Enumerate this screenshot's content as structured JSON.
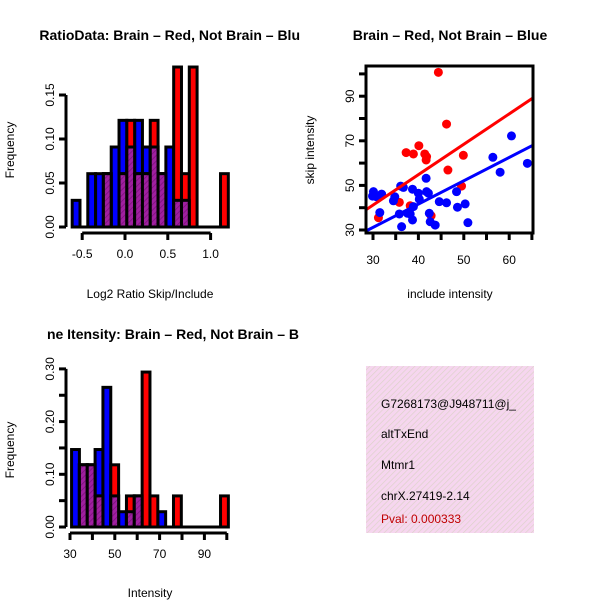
{
  "colors": {
    "brain": "#ff0000",
    "not_brain": "#0000ff",
    "overlap": "#a020a0",
    "pval": "#c00000",
    "info_bg": "#f6d6ef"
  },
  "chart_data": [
    {
      "type": "bar",
      "title": "RatioData: Brain – Red, Not Brain – Blu",
      "xlabel": "Log2 Ratio Skip/Include",
      "ylabel": "Frequency",
      "xlim": [
        -0.617,
        1.207
      ],
      "ylim": [
        0,
        0.18
      ],
      "bin_start": -0.617,
      "bin_width": 0.0912,
      "xticks": [
        -0.5,
        0.0,
        0.5,
        1.0
      ],
      "xtick_labels": [
        "-0.5",
        "0.0",
        "0.5",
        "1.0"
      ],
      "yticks": [
        0,
        0.05,
        0.1,
        0.15
      ],
      "ytick_labels": [
        "0.00",
        "0.05",
        "0.10",
        "0.15"
      ],
      "series": [
        {
          "name": "Not Brain",
          "color": "blue",
          "values": [
            0.0303,
            0,
            0.0606,
            0.0606,
            0.0606,
            0.0909,
            0.1212,
            0.0909,
            0.1212,
            0.0909,
            0.0909,
            0.0606,
            0.0909,
            0.0303,
            0.0303,
            0,
            0,
            0,
            0,
            0
          ]
        },
        {
          "name": "Brain",
          "color": "red",
          "values": [
            0,
            0,
            0,
            0,
            0.0606,
            0,
            0.0606,
            0.1212,
            0.0606,
            0.0606,
            0.1212,
            0.0606,
            0,
            0.1818,
            0.0606,
            0.1818,
            0,
            0,
            0,
            0.0606
          ]
        }
      ]
    },
    {
      "type": "scatter",
      "title": "Brain – Red, Not Brain – Blue",
      "xlabel": "include intensity",
      "ylabel": "skip intensity",
      "xlim": [
        28.5,
        65.3
      ],
      "ylim": [
        28.6,
        103.5
      ],
      "xticks": [
        30,
        35,
        40,
        45,
        50,
        55,
        60,
        65
      ],
      "xtick_labels": [
        "30",
        "40",
        "50",
        "60"
      ],
      "xtick_label_values": [
        30,
        40,
        50,
        60
      ],
      "yticks": [
        30,
        40,
        50,
        60,
        70,
        80,
        90,
        100
      ],
      "ytick_labels": [
        "30",
        "50",
        "70",
        "90"
      ],
      "ytick_label_values": [
        30,
        50,
        70,
        90
      ],
      "series": [
        {
          "name": "Brain",
          "color": "red",
          "points": [
            [
              44.4,
              100.7
            ],
            [
              46.2,
              77.5
            ],
            [
              40.1,
              67.8
            ],
            [
              37.3,
              64.7
            ],
            [
              38.9,
              64.1
            ],
            [
              41.4,
              64.1
            ],
            [
              41.8,
              62.9
            ],
            [
              41.7,
              61.4
            ],
            [
              46.5,
              56.9
            ],
            [
              49.9,
              63.5
            ],
            [
              49.5,
              49.7
            ],
            [
              35.8,
              42.4
            ],
            [
              38.2,
              40.9
            ],
            [
              31.2,
              35.5
            ],
            [
              42.8,
              36.4
            ]
          ],
          "fit": [
            [
              28.4,
              39.0
            ],
            [
              65.3,
              89.3
            ]
          ]
        },
        {
          "name": "Not Brain",
          "color": "blue",
          "points": [
            [
              30.1,
              47.2
            ],
            [
              29.9,
              45.2
            ],
            [
              30.8,
              44.9
            ],
            [
              31.9,
              46.1
            ],
            [
              31.5,
              37.8
            ],
            [
              34.5,
              43.1
            ],
            [
              34.8,
              44.9
            ],
            [
              35.8,
              37.2
            ],
            [
              36.1,
              49.7
            ],
            [
              36.7,
              49.1
            ],
            [
              36.3,
              31.5
            ],
            [
              37.6,
              37.5
            ],
            [
              38.2,
              37.2
            ],
            [
              38.7,
              34.5
            ],
            [
              38.7,
              48.3
            ],
            [
              38.9,
              40.5
            ],
            [
              40.0,
              46.5
            ],
            [
              40.2,
              43.8
            ],
            [
              41.7,
              53.2
            ],
            [
              41.8,
              47.2
            ],
            [
              42.2,
              46.5
            ],
            [
              42.4,
              37.5
            ],
            [
              42.6,
              33.7
            ],
            [
              43.7,
              32.2
            ],
            [
              44.6,
              42.7
            ],
            [
              46.2,
              42.2
            ],
            [
              48.4,
              47.2
            ],
            [
              48.6,
              40.2
            ],
            [
              50.3,
              41.7
            ],
            [
              50.9,
              33.3
            ],
            [
              56.4,
              62.6
            ],
            [
              58.0,
              55.9
            ],
            [
              60.5,
              72.2
            ],
            [
              64.0,
              59.9
            ]
          ],
          "fit": [
            [
              28.4,
              29.5
            ],
            [
              65.3,
              68.1
            ]
          ]
        }
      ]
    },
    {
      "type": "bar",
      "title": "ne Itensity: Brain – Red, Not Brain – B",
      "xlabel": "Intensity",
      "ylabel": "Frequency",
      "xlim": [
        30.7,
        100.7
      ],
      "ylim": [
        0,
        0.3
      ],
      "bin_start": 30.7,
      "bin_width": 3.5,
      "xticks": [
        30,
        40,
        50,
        60,
        70,
        80,
        90,
        100
      ],
      "xtick_labels": [
        "30",
        "50",
        "70",
        "90"
      ],
      "xtick_label_values": [
        30,
        50,
        70,
        90
      ],
      "yticks": [
        0,
        0.05,
        0.1,
        0.15,
        0.2,
        0.25,
        0.3
      ],
      "ytick_labels": [
        "0.00",
        "0.10",
        "0.20",
        "0.30"
      ],
      "ytick_label_values": [
        0,
        0.1,
        0.2,
        0.3
      ],
      "series": [
        {
          "name": "Not Brain",
          "color": "blue",
          "values": [
            0.147,
            0.118,
            0.118,
            0.147,
            0.265,
            0.059,
            0.029,
            0.029,
            0.059,
            0,
            0,
            0.029,
            0,
            0,
            0,
            0,
            0,
            0,
            0,
            0
          ]
        },
        {
          "name": "Brain",
          "color": "red",
          "values": [
            0,
            0.118,
            0.118,
            0.059,
            0,
            0.118,
            0,
            0.059,
            0.059,
            0.294,
            0.059,
            0,
            0,
            0.059,
            0,
            0,
            0,
            0,
            0,
            0.059
          ]
        }
      ]
    }
  ],
  "info": {
    "event_id": "G7268173@J948711@j_",
    "event_type": "altTxEnd",
    "gene": "Mtmr1",
    "location": "chrX.27419-2.14",
    "pval": "Pval: 0.000333"
  }
}
